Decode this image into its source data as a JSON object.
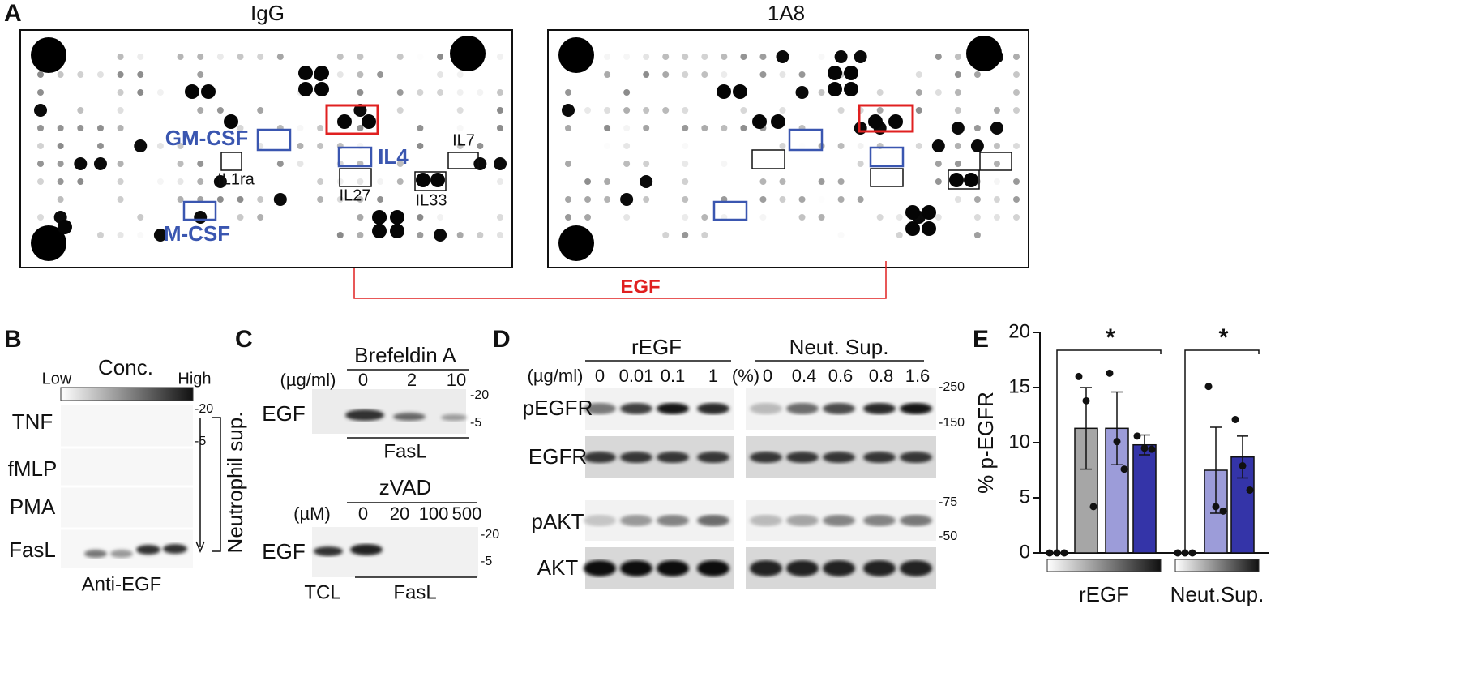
{
  "panel_a": {
    "label": "A",
    "titles": [
      "IgG",
      "1A8"
    ],
    "cytokines": {
      "gm_csf": "GM-CSF",
      "il4": "IL4",
      "m_csf": "M-CSF",
      "il7": "IL7",
      "il1ra": "IL1ra",
      "il27": "IL27",
      "il33": "IL33"
    },
    "egf": "EGF"
  },
  "panel_b": {
    "label": "B",
    "conc": "Conc.",
    "low": "Low",
    "high": "High",
    "rows": [
      "TNF",
      "fMLP",
      "PMA",
      "FasL"
    ],
    "markers": [
      "-20",
      "-5"
    ],
    "side": "Neutrophil sup.",
    "footer": "Anti-EGF"
  },
  "panel_c": {
    "label": "C",
    "top": {
      "treatment": "Brefeldin A",
      "unit": "(µg/ml)",
      "doses": [
        "0",
        "2",
        "10"
      ],
      "row": "EGF",
      "markers": [
        "-20",
        "-5"
      ],
      "footer": "FasL"
    },
    "bottom": {
      "treatment": "zVAD",
      "unit": "(µM)",
      "doses": [
        "0",
        "20",
        "100",
        "500"
      ],
      "row": "EGF",
      "markers": [
        "-20",
        "-5"
      ],
      "control": "TCL",
      "footer": "FasL"
    }
  },
  "panel_d": {
    "label": "D",
    "groups": [
      "rEGF",
      "Neut. Sup."
    ],
    "units": [
      "(µg/ml)",
      "(%)"
    ],
    "doses_left": [
      "0",
      "0.01",
      "0.1",
      "1"
    ],
    "doses_right": [
      "0",
      "0.4",
      "0.6",
      "0.8",
      "1.6"
    ],
    "rows": [
      "pEGFR",
      "EGFR",
      "pAKT",
      "AKT"
    ],
    "markers": [
      "-250",
      "-150",
      "-75",
      "-50"
    ]
  },
  "chart_data": {
    "type": "bar",
    "label": "E",
    "ylabel": "% p-EGFR",
    "categories": [
      null,
      null,
      null,
      null,
      null,
      null,
      null
    ],
    "values": [
      0,
      11.3,
      11.3,
      9.8,
      0,
      7.5,
      8.7
    ],
    "errors": [
      0,
      3.7,
      3.3,
      0.9,
      0,
      3.9,
      1.9
    ],
    "points": [
      [
        0,
        0,
        0
      ],
      [
        16,
        13.8,
        4.2
      ],
      [
        16.3,
        10.1,
        7.6
      ],
      [
        10.6,
        9.5,
        9.4
      ],
      [
        0,
        0,
        0
      ],
      [
        15.1,
        4.2,
        3.8
      ],
      [
        12.1,
        7.9,
        5.7
      ]
    ],
    "colors": [
      "#ffffff",
      "#a6a6a6",
      "#9c9cd9",
      "#3434a8",
      "#ffffff",
      "#9c9cd9",
      "#3434a8"
    ],
    "groups": [
      {
        "name": "rEGF",
        "size": 4
      },
      {
        "name": "Neut.Sup.",
        "size": 3
      }
    ],
    "annotations": [
      "*",
      "*"
    ],
    "ylim": [
      0,
      20
    ],
    "yticks": [
      0,
      5,
      10,
      15,
      20
    ]
  }
}
